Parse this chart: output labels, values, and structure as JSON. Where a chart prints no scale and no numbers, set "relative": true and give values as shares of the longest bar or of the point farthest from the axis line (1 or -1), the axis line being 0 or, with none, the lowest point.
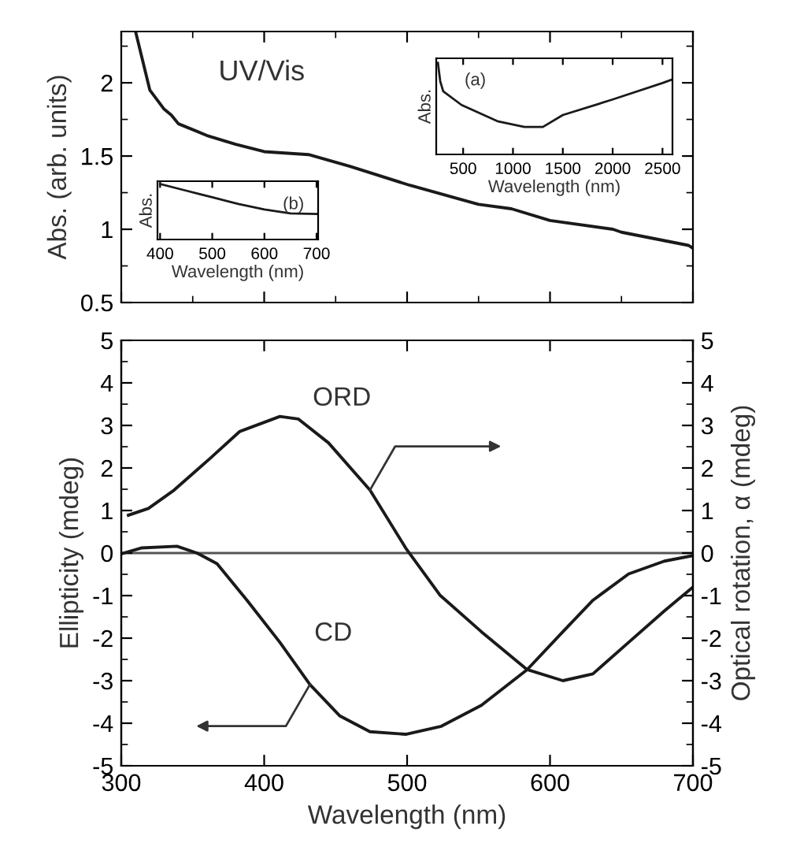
{
  "chart_data": [
    {
      "type": "line",
      "x": [
        310,
        320,
        330,
        335,
        340,
        360,
        380,
        400,
        431,
        460,
        502,
        550,
        573,
        600,
        644,
        650,
        697,
        700
      ],
      "series": [
        {
          "color": "#1a1a1a",
          "values": [
            2.35,
            1.95,
            1.82,
            1.78,
            1.72,
            1.64,
            1.58,
            1.53,
            1.51,
            1.43,
            1.3,
            1.17,
            1.14,
            1.06,
            1.0,
            0.98,
            0.89,
            0.87
          ]
        }
      ],
      "xlim": [
        300,
        700
      ],
      "xticks": [
        300,
        400,
        500,
        600,
        700
      ],
      "ylim": [
        0.5,
        2.35
      ],
      "yticks": [
        0.5,
        1,
        1.5,
        2
      ],
      "ylabel": "Abs. (arb. units)",
      "annotations": [
        "UV/Vis"
      ],
      "tick_labels": "y"
    },
    {
      "type": "line",
      "x": [
        247,
        270,
        300,
        484,
        852,
        1115,
        1300,
        1500,
        2000,
        2500,
        2600
      ],
      "series": [
        {
          "color": "#1a1a1a",
          "values": [
            1,
            0.8,
            0.69,
            0.54,
            0.36,
            0.3,
            0.3,
            0.43,
            0.6,
            0.78,
            0.82
          ]
        }
      ],
      "relative": true,
      "xlim": [
        230,
        2600
      ],
      "xticks": [
        500,
        1000,
        1500,
        2000,
        2500
      ],
      "xlabel": "Wavelength (nm)",
      "ylabel": "Abs.",
      "annotations": [
        "(a)"
      ],
      "tick_labels": "x"
    },
    {
      "type": "line",
      "x": [
        400,
        450,
        500,
        550,
        600,
        650,
        700
      ],
      "series": [
        {
          "color": "#1a1a1a",
          "values": [
            1,
            0.88,
            0.76,
            0.64,
            0.54,
            0.47,
            0.46
          ]
        }
      ],
      "relative": true,
      "xlim": [
        395,
        703
      ],
      "xticks": [
        400,
        500,
        600,
        700
      ],
      "xlabel": "Wavelength (nm)",
      "ylabel": "Abs.",
      "annotations": [
        "(b)"
      ],
      "tick_labels": "x"
    },
    {
      "type": "line",
      "series": [
        {
          "name": "ORD",
          "color": "#1a1a1a",
          "axis": "y2",
          "x": [
            305,
            319,
            337,
            362,
            383,
            411,
            424,
            445,
            474,
            499,
            523,
            552,
            584,
            609,
            630,
            655,
            680,
            700
          ],
          "values": [
            0.89,
            1.05,
            1.48,
            2.22,
            2.86,
            3.21,
            3.15,
            2.59,
            1.48,
            0.12,
            -0.99,
            -1.85,
            -2.74,
            -3.0,
            -2.84,
            -2.1,
            -1.36,
            -0.8
          ]
        },
        {
          "name": "CD",
          "color": "#1a1a1a",
          "x": [
            300,
            314,
            339,
            353,
            367,
            388,
            411,
            432,
            453,
            474,
            499,
            524,
            552,
            584,
            609,
            630,
            655,
            680,
            700
          ],
          "values": [
            -0.02,
            0.12,
            0.16,
            0,
            -0.25,
            -1.11,
            -2.1,
            -3.09,
            -3.83,
            -4.2,
            -4.26,
            -4.07,
            -3.58,
            -2.74,
            -1.85,
            -1.11,
            -0.49,
            -0.19,
            -0.06
          ]
        }
      ],
      "xlim": [
        300,
        700
      ],
      "xticks": [
        300,
        400,
        500,
        600,
        700
      ],
      "ylim": [
        -5,
        5
      ],
      "yticks": [
        -5,
        -4,
        -3,
        -2,
        -1,
        0,
        1,
        2,
        3,
        4,
        5
      ],
      "y2lim": [
        -5,
        5
      ],
      "y2ticks": [
        -5,
        -4,
        -3,
        -2,
        -1,
        0,
        1,
        2,
        3,
        4,
        5
      ],
      "xlabel": "Wavelength (nm)",
      "ylabel": "Ellipticity (mdeg)",
      "y2label": "Optical rotation, α (mdeg)",
      "ref_lines": [
        {
          "axis": "y",
          "value": 0,
          "color": "#555555"
        }
      ]
    }
  ]
}
